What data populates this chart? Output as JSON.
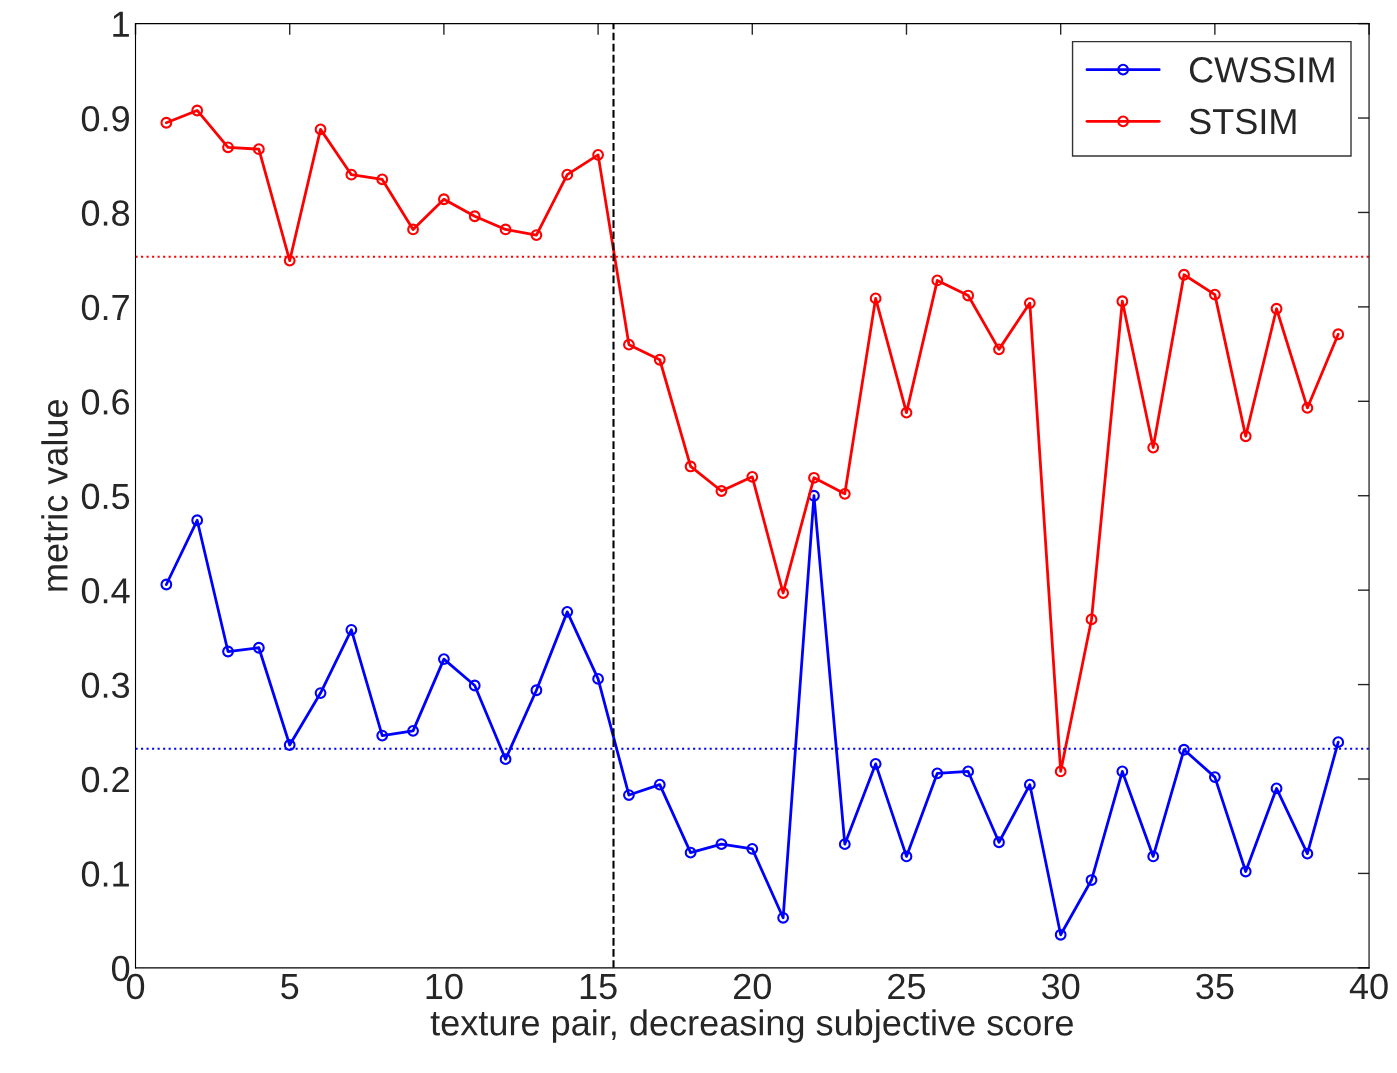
{
  "chart_data": {
    "type": "line",
    "xlabel": "texture pair, decreasing subjective score",
    "ylabel": "metric value",
    "x": [
      1,
      2,
      3,
      4,
      5,
      6,
      7,
      8,
      9,
      10,
      11,
      12,
      13,
      14,
      15,
      16,
      17,
      18,
      19,
      20,
      21,
      22,
      23,
      24,
      25,
      26,
      27,
      28,
      29,
      30,
      31,
      32,
      33,
      34,
      35,
      36,
      37,
      38,
      39
    ],
    "series": [
      {
        "name": "CWSSIM",
        "color": "#0000ff",
        "values": [
          0.406,
          0.474,
          0.335,
          0.339,
          0.236,
          0.291,
          0.358,
          0.246,
          0.251,
          0.327,
          0.299,
          0.221,
          0.294,
          0.377,
          0.306,
          0.183,
          0.194,
          0.122,
          0.131,
          0.126,
          0.053,
          0.5,
          0.131,
          0.216,
          0.118,
          0.206,
          0.208,
          0.133,
          0.194,
          0.035,
          0.093,
          0.208,
          0.118,
          0.231,
          0.202,
          0.102,
          0.19,
          0.121,
          0.239
        ]
      },
      {
        "name": "STSIM",
        "color": "#ff0000",
        "values": [
          0.895,
          0.908,
          0.869,
          0.867,
          0.749,
          0.888,
          0.84,
          0.835,
          0.782,
          0.814,
          0.796,
          0.782,
          0.776,
          0.84,
          0.861,
          0.66,
          0.644,
          0.531,
          0.505,
          0.52,
          0.397,
          0.519,
          0.502,
          0.709,
          0.588,
          0.728,
          0.712,
          0.655,
          0.704,
          0.208,
          0.369,
          0.706,
          0.551,
          0.734,
          0.713,
          0.563,
          0.698,
          0.593,
          0.671
        ]
      }
    ],
    "xlim": [
      0,
      40
    ],
    "xticks": [
      0,
      5,
      10,
      15,
      20,
      25,
      30,
      35,
      40
    ],
    "ylim": [
      0,
      1
    ],
    "yticks": [
      0,
      0.1,
      0.2,
      0.3,
      0.4,
      0.5,
      0.6,
      0.7,
      0.8,
      0.9,
      1
    ],
    "ref_lines": [
      {
        "axis": "y",
        "value": 0.753,
        "color": "#ff0000",
        "line_style": "dotted"
      },
      {
        "axis": "y",
        "value": 0.232,
        "color": "#0000ff",
        "line_style": "dotted"
      },
      {
        "axis": "x",
        "value": 15.5,
        "color": "#000000",
        "line_style": "dashed"
      }
    ],
    "marker": "circle",
    "line_style": "solid",
    "legend": "top right",
    "grid": false
  }
}
